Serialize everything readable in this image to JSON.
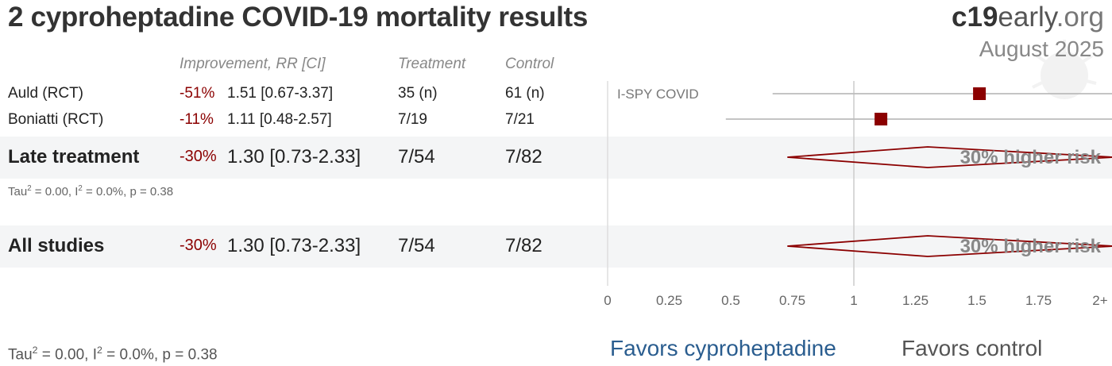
{
  "title": "2 cyproheptadine COVID-19 mortality results",
  "brand": {
    "bold": "c19",
    "mid": "early",
    "end": ".org"
  },
  "date": "August 2025",
  "headers": {
    "improvement": "Improvement, RR [CI]",
    "treatment": "Treatment",
    "control": "Control"
  },
  "studies": [
    {
      "name": "Auld (RCT)",
      "improvement": "-51%",
      "rr_ci": "1.51 [0.67-3.37]",
      "treatment": "35 (n)",
      "control": "61 (n)",
      "label": "I-SPY COVID"
    },
    {
      "name": "Boniatti (RCT)",
      "improvement": "-11%",
      "rr_ci": "1.11 [0.48-2.57]",
      "treatment": "7/19",
      "control": "7/21",
      "label": ""
    }
  ],
  "late": {
    "name": "Late treatment",
    "improvement": "-30%",
    "rr_ci": "1.30 [0.73-2.33]",
    "treatment": "7/54",
    "control": "7/82",
    "summary_label": "30% higher risk",
    "tau": "Tau",
    "tau_sup": "2",
    "tau_mid": " = 0.00, I",
    "tau_sup2": "2",
    "tau_end": " = 0.0%, p = 0.38"
  },
  "all": {
    "name": "All studies",
    "improvement": "-30%",
    "rr_ci": "1.30 [0.73-2.33]",
    "treatment": "7/54",
    "control": "7/82",
    "summary_label": "30% higher risk",
    "tau": "Tau",
    "tau_sup": "2",
    "tau_mid": " = 0.00, I",
    "tau_sup2": "2",
    "tau_end": " = 0.0%, p = 0.38"
  },
  "favors": {
    "left": "Favors cyproheptadine",
    "right": "Favors control"
  },
  "colors": {
    "marker": "#8b0000",
    "favors_left": "#2a5d8f",
    "favors_right": "#555555",
    "band": "#f4f5f6"
  },
  "chart_data": {
    "type": "forest",
    "x_ticks": [
      "0",
      "0.25",
      "0.5",
      "0.75",
      "1",
      "1.25",
      "1.5",
      "1.75",
      "2+"
    ],
    "xlim": [
      0,
      2
    ],
    "reference_line": 1,
    "points": [
      {
        "name": "Auld (RCT)",
        "rr": 1.51,
        "lo": 0.67,
        "hi": 3.37
      },
      {
        "name": "Boniatti (RCT)",
        "rr": 1.11,
        "lo": 0.48,
        "hi": 2.57
      }
    ],
    "summaries": [
      {
        "name": "Late treatment",
        "rr": 1.3,
        "lo": 0.73,
        "hi": 2.33
      },
      {
        "name": "All studies",
        "rr": 1.3,
        "lo": 0.73,
        "hi": 2.33
      }
    ]
  }
}
